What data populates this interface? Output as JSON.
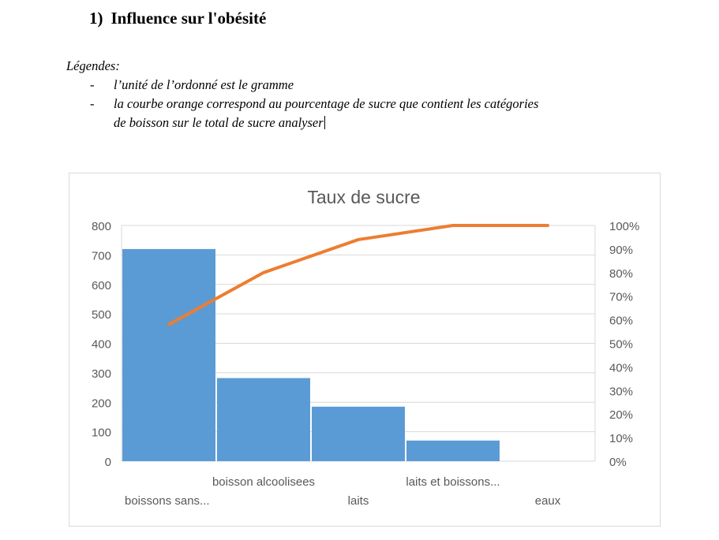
{
  "heading": {
    "number": "1)",
    "title": "Influence sur l'obésité"
  },
  "legend": {
    "label": "Légendes:",
    "items": [
      "l’unité de l’ordonné est le gramme",
      "la courbe orange correspond au pourcentage de sucre que contient les catégories",
      "de boisson sur le total de sucre analyser"
    ]
  },
  "chart_data": {
    "type": "bar",
    "title": "Taux de sucre",
    "categories": [
      "boissons sans...",
      "boisson alcoolisees",
      "laits",
      "laits et boissons...",
      "eaux"
    ],
    "series": [
      {
        "type": "bar",
        "values": [
          720,
          282,
          185,
          70,
          0
        ],
        "color": "#5b9bd5"
      },
      {
        "type": "line",
        "axis": "secondary",
        "values": [
          0.58,
          0.8,
          0.94,
          1.0,
          1.0
        ],
        "color": "#ed7d31"
      }
    ],
    "ylim": [
      0,
      800
    ],
    "yticks": [
      0,
      100,
      200,
      300,
      400,
      500,
      600,
      700,
      800
    ],
    "y2lim": [
      0,
      1
    ],
    "y2ticks": [
      "0%",
      "10%",
      "20%",
      "30%",
      "40%",
      "50%",
      "60%",
      "70%",
      "80%",
      "90%",
      "100%"
    ],
    "grid": true
  }
}
